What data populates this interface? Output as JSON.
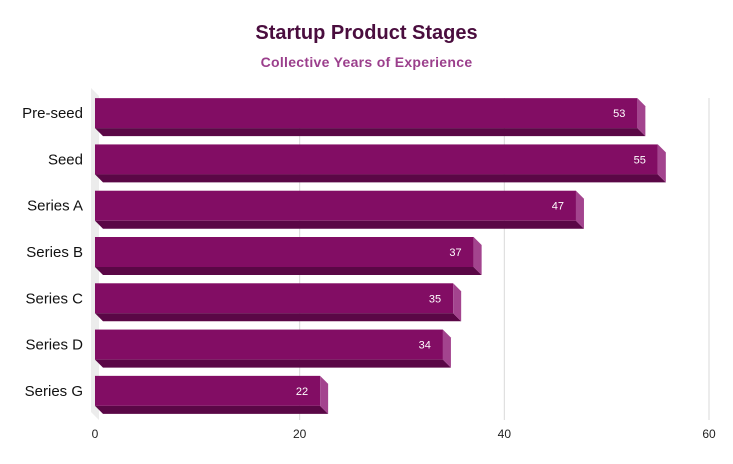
{
  "chart_data": {
    "type": "bar",
    "orientation": "horizontal",
    "title": "Startup Product Stages",
    "subtitle": "Collective Years of Experience",
    "categories": [
      "Pre-seed",
      "Seed",
      "Series A",
      "Series B",
      "Series C",
      "Series D",
      "Series G"
    ],
    "values": [
      53,
      55,
      47,
      37,
      35,
      34,
      22
    ],
    "xlim": [
      0,
      60
    ],
    "xticks": [
      0,
      20,
      40,
      60
    ],
    "xlabel": "",
    "ylabel": "",
    "grid": true,
    "legend": "none",
    "data_labels": true,
    "colors": {
      "bar_front": "#820d64",
      "bar_bottom": "#5a0746",
      "bar_side": "#a3448e",
      "title": "#4a0d3e",
      "subtitle": "#9b3f8c",
      "grid": "#d9d9d9"
    }
  }
}
